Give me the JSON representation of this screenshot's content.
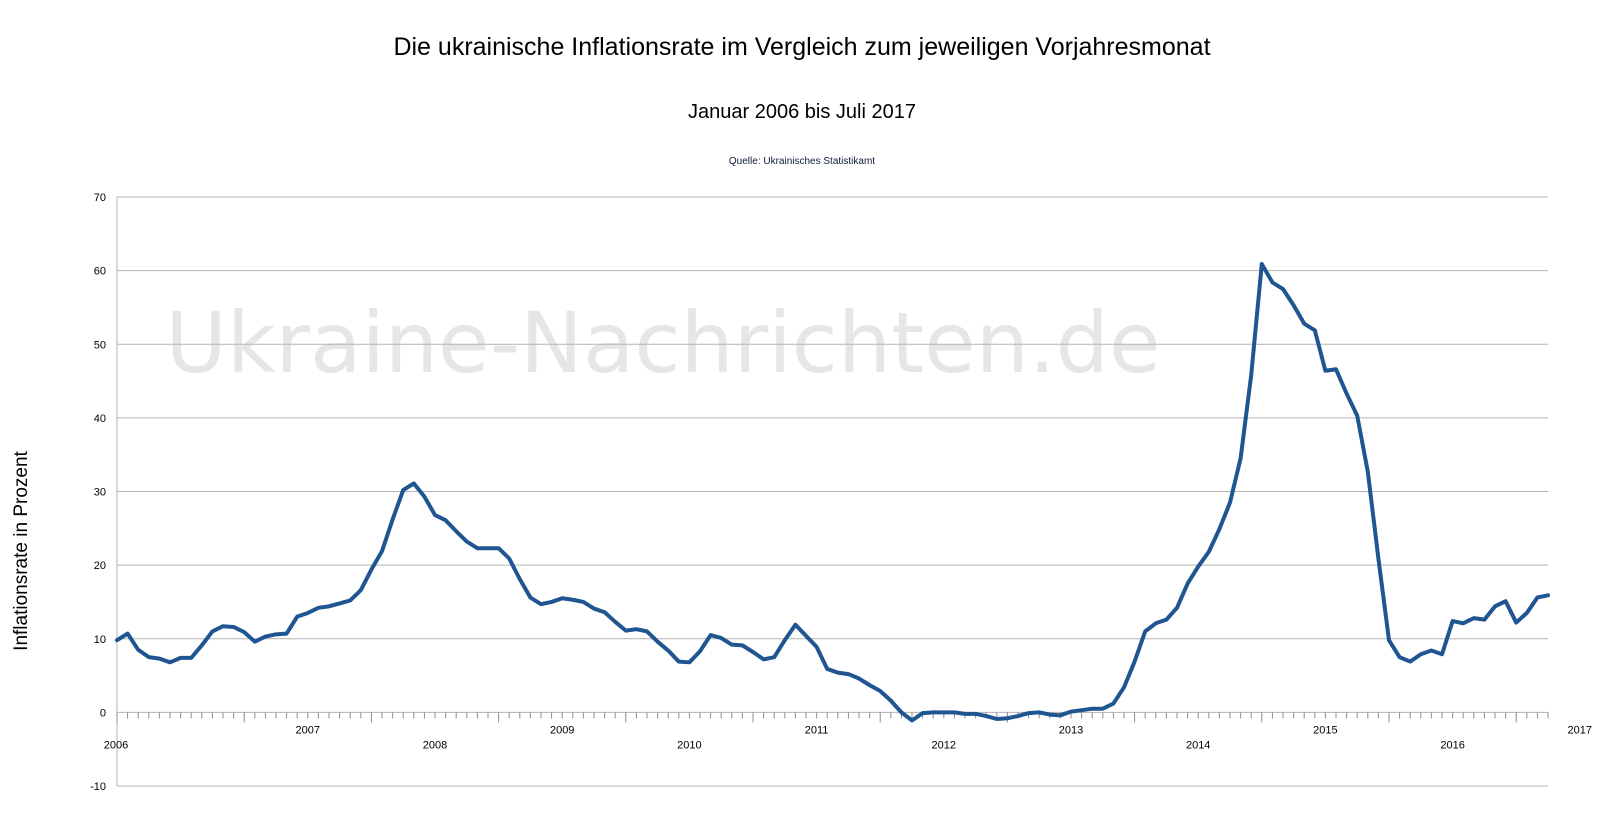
{
  "title": "Die ukrainische Inflationsrate im Vergleich zum jeweiligen Vorjahresmonat",
  "subtitle": "Januar 2006 bis Juli 2017",
  "source": "Quelle: Ukrainisches Statistikamt",
  "watermark": "Ukraine-Nachrichten.de",
  "colors": {
    "line": "#1f5591",
    "grid": "#b3b3b3",
    "axis": "#b3b3b3",
    "watermark": "#e6e6e6"
  },
  "chart_data": {
    "type": "line",
    "title": "Die ukrainische Inflationsrate im Vergleich zum jeweiligen Vorjahresmonat",
    "subtitle": "Januar 2006 bis Juli 2017",
    "xlabel": "",
    "ylabel": "Inflationsrate in Prozent",
    "ylim": [
      -10,
      70
    ],
    "yticks": [
      -10,
      0,
      10,
      20,
      30,
      40,
      50,
      60,
      70
    ],
    "grid": true,
    "x_start": "2006-01",
    "x_end": "2017-07",
    "year_labels": [
      "2006",
      "2007",
      "2008",
      "2009",
      "2010",
      "2011",
      "2012",
      "2013",
      "2014",
      "2015",
      "2016",
      "2017"
    ],
    "series": [
      {
        "values": [
          9.8,
          10.7,
          8.5,
          7.5,
          7.3,
          6.8,
          7.4,
          7.4,
          9.1,
          11.0,
          11.7,
          11.6,
          10.9,
          9.6,
          10.3,
          10.6,
          10.7,
          13.0,
          13.5,
          14.2,
          14.4,
          14.8,
          15.2,
          16.6,
          19.4,
          21.9,
          26.2,
          30.2,
          31.1,
          29.3,
          26.8,
          26.1,
          24.6,
          23.2,
          22.3,
          22.3,
          22.3,
          20.9,
          18.1,
          15.6,
          14.7,
          15.0,
          15.5,
          15.3,
          15.0,
          14.1,
          13.6,
          12.3,
          11.1,
          11.3,
          11.0,
          9.6,
          8.4,
          6.9,
          6.8,
          8.3,
          10.5,
          10.1,
          9.2,
          9.1,
          8.2,
          7.2,
          7.5,
          9.8,
          11.9,
          10.4,
          8.9,
          5.9,
          5.4,
          5.2,
          4.6,
          3.7,
          2.9,
          1.6,
          0.0,
          -1.1,
          -0.1,
          0.0,
          0.0,
          0.0,
          -0.2,
          -0.2,
          -0.5,
          -0.9,
          -0.8,
          -0.5,
          -0.1,
          0.0,
          -0.3,
          -0.4,
          0.1,
          0.3,
          0.5,
          0.5,
          1.2,
          3.4,
          6.9,
          11.0,
          12.1,
          12.6,
          14.2,
          17.5,
          19.8,
          21.8,
          24.9,
          28.5,
          34.5,
          45.8,
          60.9,
          58.4,
          57.5,
          55.3,
          52.8,
          51.9,
          46.4,
          46.6,
          43.3,
          40.3,
          32.7,
          20.9,
          9.8,
          7.5,
          6.9,
          7.9,
          8.4,
          7.9,
          12.4,
          12.1,
          12.8,
          12.6,
          14.4,
          15.1,
          12.2,
          13.5,
          15.6,
          15.9
        ]
      }
    ]
  }
}
